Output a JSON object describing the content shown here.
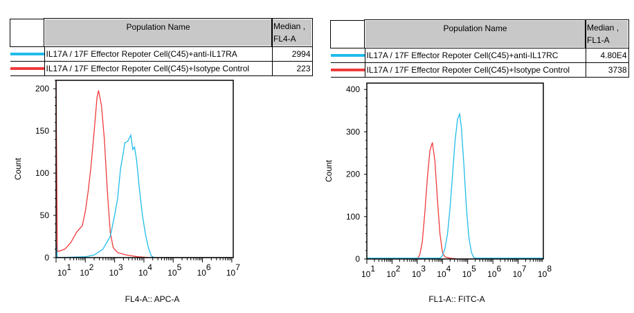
{
  "colors": {
    "blue": "#1fbbea",
    "red": "#f03a3a"
  },
  "tables": [
    {
      "header": {
        "name": "Population Name",
        "median": [
          "Median ,",
          "FL4-A"
        ]
      },
      "rows": [
        {
          "name": "IL17A / 17F Effector Repoter Cell(C45)+anti-IL17RA",
          "median": "2994",
          "color": "blue"
        },
        {
          "name": "IL17A / 17F Effector Repoter Cell(C45)+Isotype Control",
          "median": "223",
          "color": "red"
        }
      ]
    },
    {
      "header": {
        "name": "Population Name",
        "median": [
          "Median ,",
          "FL1-A"
        ]
      },
      "rows": [
        {
          "name": "IL17A / 17F Effector Repoter Cell(C45)+anti-IL17RC",
          "median": "4.80E4",
          "color": "blue"
        },
        {
          "name": "IL17A / 17F Effector Repoter Cell(C45)+Isotype Control",
          "median": "3738",
          "color": "red"
        }
      ]
    }
  ],
  "chart_data": [
    {
      "type": "line",
      "xlabel": "FL4-A:: APC-A",
      "ylabel": "Count",
      "xscale": "log",
      "xlim": [
        10,
        11220000
      ],
      "ylim": [
        0,
        210
      ],
      "yticks": [
        0,
        50,
        100,
        150,
        200
      ],
      "xticks": [
        10,
        100,
        1000,
        10000,
        100000,
        1000000,
        10000000
      ],
      "xtick_labels": [
        [
          "10",
          "1"
        ],
        [
          "10",
          "2"
        ],
        [
          "10",
          "3"
        ],
        [
          "10",
          "4"
        ],
        [
          "10",
          "5"
        ],
        [
          "10",
          "6"
        ],
        [
          "10",
          "7"
        ]
      ],
      "series": [
        {
          "name": "IL17A / 17F Effector Repoter Cell(C45)+Isotype Control",
          "color": "red",
          "x": [
            10,
            11,
            20,
            32,
            50,
            79,
            100,
            126,
            158,
            200,
            251,
            282,
            355,
            447,
            562,
            708,
            891,
            1259,
            2512,
            6310,
            15849,
            11220000
          ],
          "y": [
            210,
            7,
            10,
            18,
            30,
            38,
            55,
            80,
            110,
            150,
            190,
            198,
            180,
            140,
            80,
            30,
            12,
            6,
            3,
            1,
            0,
            0
          ]
        },
        {
          "name": "IL17A / 17F Effector Repoter Cell(C45)+anti-IL17RA",
          "color": "blue",
          "x": [
            10,
            11,
            100,
            200,
            398,
            708,
            1000,
            1259,
            1585,
            1995,
            2239,
            2818,
            3548,
            4169,
            4786,
            5623,
            7079,
            8913,
            11220,
            14125,
            17783,
            22387,
            11220000
          ],
          "y": [
            18,
            0,
            1,
            3,
            10,
            25,
            50,
            70,
            105,
            125,
            136,
            138,
            145,
            128,
            131,
            115,
            80,
            50,
            28,
            12,
            2,
            0,
            0
          ]
        }
      ]
    },
    {
      "type": "line",
      "xlabel": "FL1-A:: FITC-A",
      "ylabel": "Count",
      "xscale": "log",
      "xlim": [
        10,
        100000000
      ],
      "ylim": [
        0,
        415
      ],
      "yticks": [
        0,
        100,
        200,
        300,
        400
      ],
      "xticks": [
        10,
        100,
        1000,
        10000,
        100000,
        1000000,
        10000000,
        100000000
      ],
      "xtick_labels": [
        [
          "10",
          "1"
        ],
        [
          "10",
          "2"
        ],
        [
          "10",
          "3"
        ],
        [
          "10",
          "4"
        ],
        [
          "10",
          "5"
        ],
        [
          "10",
          "6"
        ],
        [
          "10",
          "7"
        ],
        [
          "10",
          "8"
        ]
      ],
      "series": [
        {
          "name": "IL17A / 17F Effector Repoter Cell(C45)+Isotype Control",
          "color": "red",
          "x": [
            10,
            1000,
            1259,
            1585,
            1995,
            2512,
            3162,
            3981,
            5012,
            6310,
            7943,
            10000,
            12589,
            19953,
            39811,
            100000000
          ],
          "y": [
            0,
            0,
            10,
            40,
            110,
            190,
            255,
            275,
            230,
            140,
            60,
            15,
            5,
            2,
            0,
            0
          ]
        },
        {
          "name": "IL17A / 17F Effector Repoter Cell(C45)+anti-IL17RC",
          "color": "blue",
          "x": [
            10,
            7943,
            10000,
            12589,
            15849,
            19953,
            25119,
            31623,
            39811,
            47863,
            56234,
            70795,
            89125,
            112202,
            141254,
            177828,
            223872,
            100000000
          ],
          "y": [
            2,
            2,
            8,
            25,
            60,
            120,
            200,
            280,
            330,
            342,
            310,
            220,
            120,
            50,
            15,
            3,
            2,
            2
          ]
        }
      ]
    }
  ]
}
